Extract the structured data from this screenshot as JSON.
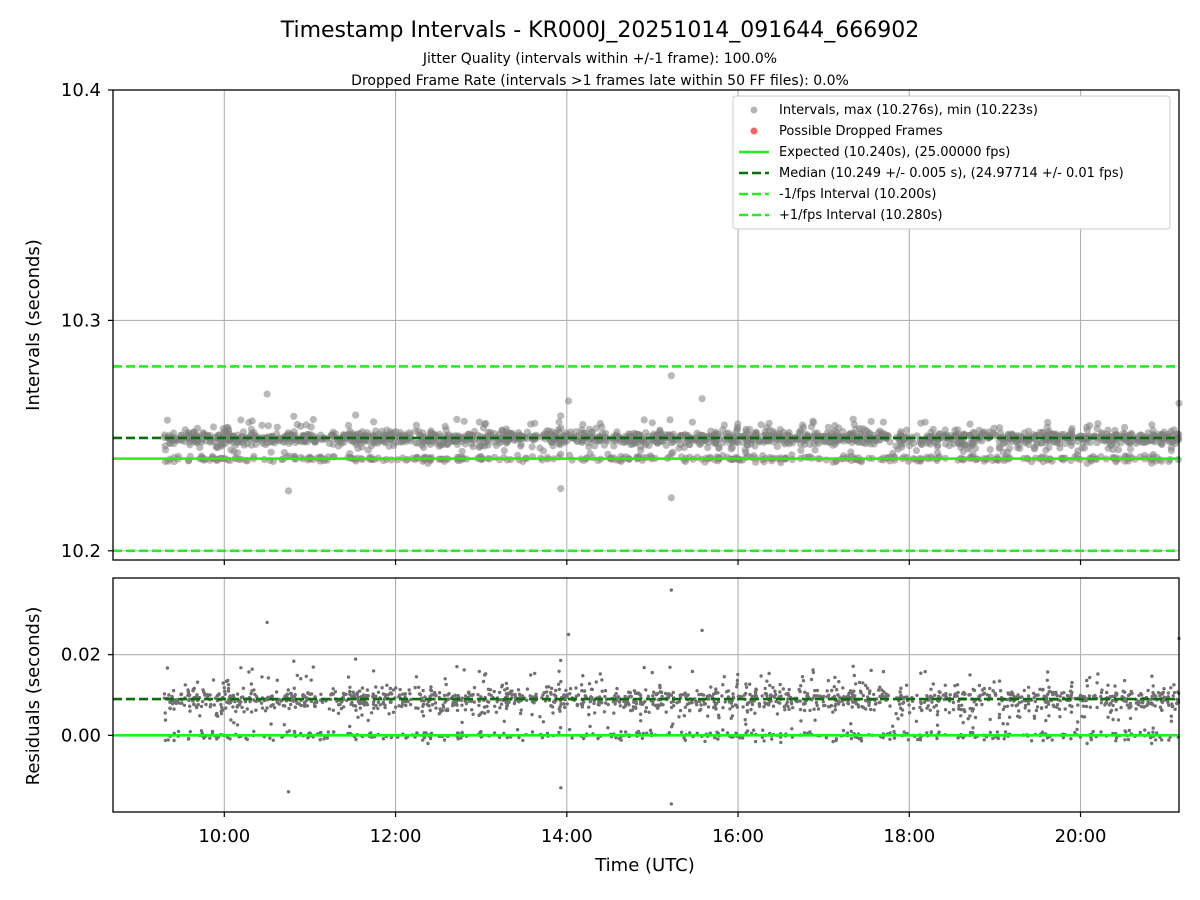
{
  "title": "Timestamp Intervals - KR000J_20251014_091644_666902",
  "subtitle_line1": "Jitter Quality (intervals within +/-1 frame): 100.0%",
  "subtitle_line2": "Dropped Frame Rate (intervals >1 frames late within 50 FF files): 0.0%",
  "colors": {
    "scatter": "#808080",
    "dropped": "#f04040",
    "expected": "#22ee22",
    "median": "#087008",
    "fps_interval": "#22ee22",
    "grid": "#b0b0b0"
  },
  "chart_data": [
    {
      "id": "intervals",
      "type": "scatter",
      "xlabel": "",
      "ylabel": "Intervals (seconds)",
      "xlim": [
        8.7,
        21.15
      ],
      "ylim": [
        10.196,
        10.4
      ],
      "xticks": [
        10,
        12,
        14,
        16,
        18,
        20
      ],
      "yticks": [
        10.2,
        10.3,
        10.4
      ],
      "ytick_labels": [
        "10.2",
        "10.3",
        "10.4"
      ],
      "grid": true,
      "legend_position": "top-right",
      "legend": {
        "intervals": "Intervals, max (10.276s), min (10.223s)",
        "dropped": "Possible Dropped Frames",
        "expected": "Expected (10.240s), (25.00000 fps)",
        "median": "Median (10.249 +/- 0.005 s), (24.97714 +/- 0.01 fps)",
        "minus_interval": "-1/fps Interval (10.200s)",
        "plus_interval": "+1/fps Interval (10.280s)"
      },
      "lines": {
        "expected": 10.24,
        "median": 10.249,
        "minus_interval": 10.2,
        "plus_interval": 10.28
      },
      "series": [
        {
          "name": "Intervals",
          "x_start": 9.3,
          "x_end": 21.15,
          "n_points": 2000,
          "y_max": 10.276,
          "y_min": 10.223,
          "notable_points": [
            {
              "x": 15.22,
              "y": 10.276
            },
            {
              "x": 15.22,
              "y": 10.223
            },
            {
              "x": 10.5,
              "y": 10.268
            },
            {
              "x": 10.75,
              "y": 10.226
            },
            {
              "x": 13.93,
              "y": 10.227
            },
            {
              "x": 15.58,
              "y": 10.266
            },
            {
              "x": 14.02,
              "y": 10.265
            },
            {
              "x": 21.15,
              "y": 10.264
            }
          ]
        },
        {
          "name": "Possible Dropped Frames",
          "values": []
        }
      ]
    },
    {
      "id": "residuals",
      "type": "scatter",
      "xlabel": "Time (UTC)",
      "ylabel": "Residuals (seconds)",
      "xlim": [
        8.7,
        21.15
      ],
      "ylim": [
        -0.019,
        0.039
      ],
      "xticks": [
        10,
        12,
        14,
        16,
        18,
        20
      ],
      "xtick_labels": [
        "10:00",
        "12:00",
        "14:00",
        "16:00",
        "18:00",
        "20:00"
      ],
      "yticks": [
        0.0,
        0.02
      ],
      "ytick_labels": [
        "0.00",
        "0.02"
      ],
      "grid": true,
      "lines": {
        "expected_residual": 0.0,
        "median_residual": 0.009
      },
      "series": [
        {
          "name": "Residuals",
          "x_start": 9.3,
          "x_end": 21.15,
          "n_points": 2000,
          "y_max": 0.036,
          "y_min": -0.017
        }
      ]
    }
  ]
}
